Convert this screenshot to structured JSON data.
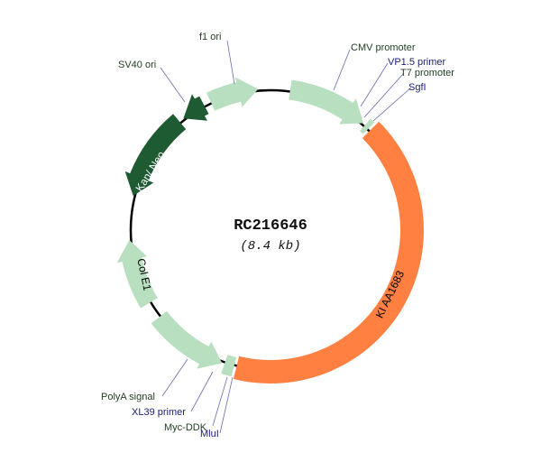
{
  "plasmid": {
    "name": "RC216646",
    "size": "(8.4 kb)"
  },
  "colors": {
    "light_green": "#b8dfc0",
    "dark_green": "#1e5a32",
    "orange": "#ff8040",
    "backbone": "#000000"
  },
  "features": {
    "cmv": "CMV promoter",
    "vp15": "VP1.5 primer",
    "t7": "T7 promoter",
    "sgfi": "SgfI",
    "insert": "KI AA1683",
    "mlui": "MluI",
    "mycddk": "Myc-DDK",
    "xl39": "XL39 primer",
    "polya": "PolyA signal",
    "cole1": "Col E1",
    "kanneo": "Kan/ Neo",
    "sv40": "SV40 ori",
    "f1": "f1 ori"
  }
}
